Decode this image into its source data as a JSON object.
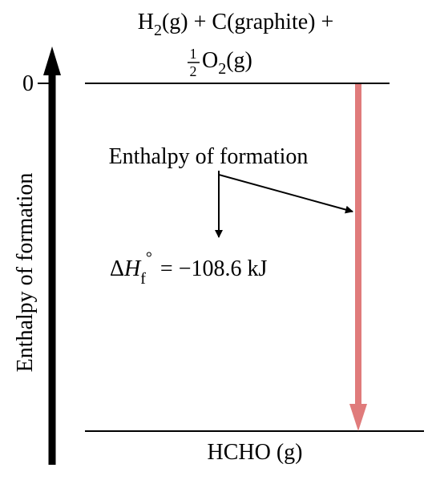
{
  "reactants": {
    "line1": {
      "h": "H",
      "h_sub": "2",
      "rest": "(g) + C(graphite) +"
    },
    "line2": {
      "frac_num": "1",
      "frac_den": "2",
      "o": "O",
      "o_sub": "2",
      "rest": "(g)"
    }
  },
  "axis": {
    "label": "Enthalpy of formation",
    "zero_label": "0"
  },
  "annotation": {
    "label": "Enthalpy of formation",
    "delta": "Δ",
    "h": "H",
    "f_sub": "f",
    "degree": "°",
    "value_text": "= −108.6 kJ"
  },
  "product": {
    "label": "HCHO (g)"
  },
  "colors": {
    "arrow": "#e07b7b",
    "ink": "#000000"
  }
}
